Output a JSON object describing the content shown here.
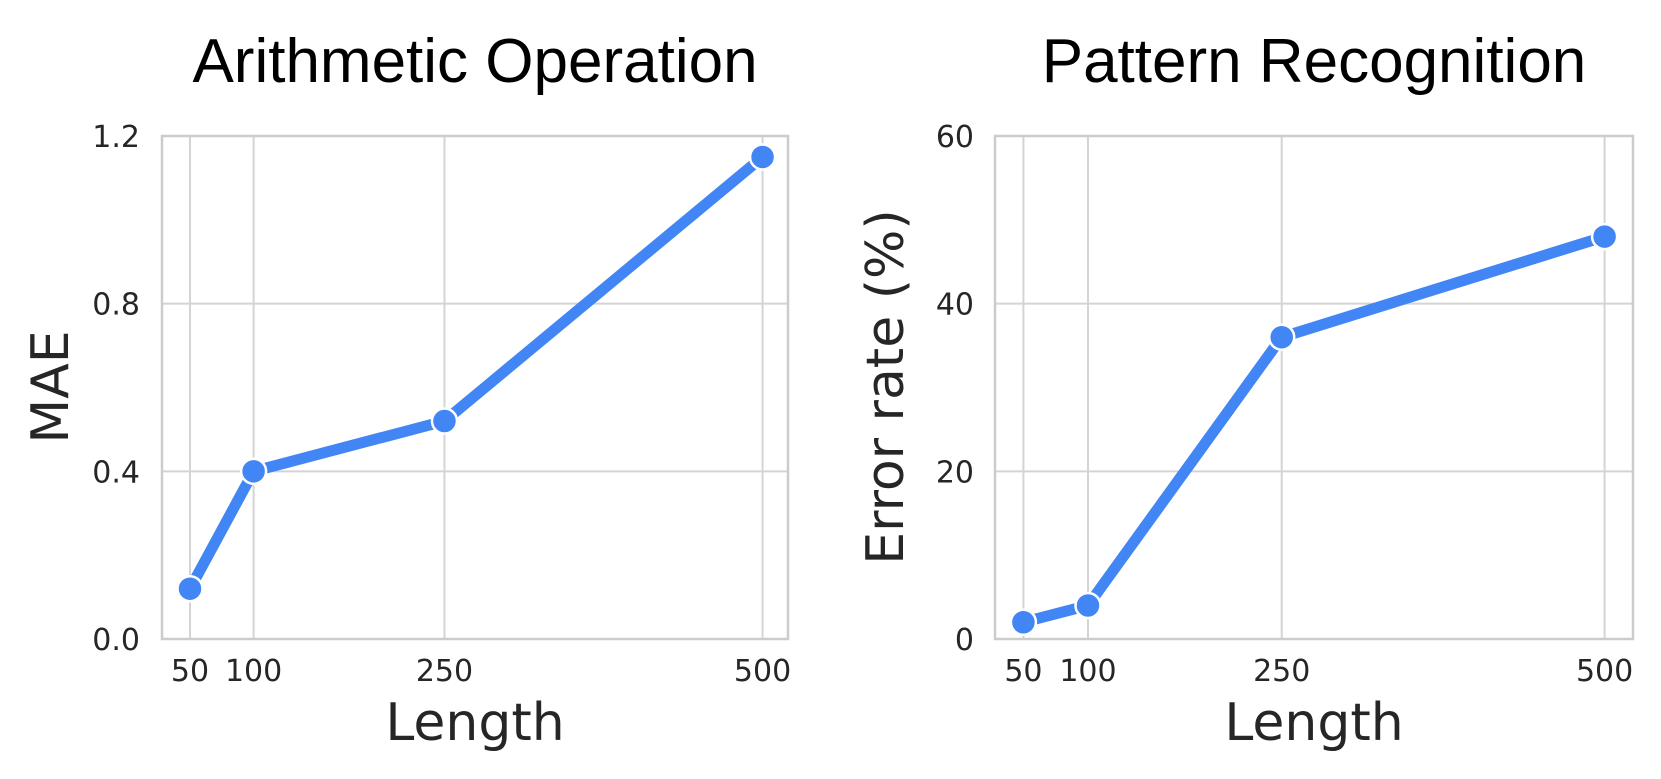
{
  "chart_data": [
    {
      "type": "line",
      "title": "Arithmetic Operation",
      "xlabel": "Length",
      "ylabel": "MAE",
      "x": [
        50,
        100,
        250,
        500
      ],
      "x_tick_labels": [
        "50",
        "100",
        "250",
        "500"
      ],
      "xlim": [
        28,
        520
      ],
      "ylim": [
        0.0,
        1.2
      ],
      "y_ticks": [
        0.0,
        0.4,
        0.8,
        1.2
      ],
      "y_tick_labels": [
        "0.0",
        "0.4",
        "0.8",
        "1.2"
      ],
      "grid": true,
      "series": [
        {
          "values": [
            0.12,
            0.4,
            0.52,
            1.15
          ],
          "color": "#4285f4"
        }
      ]
    },
    {
      "type": "line",
      "title": "Pattern Recognition",
      "xlabel": "Length",
      "ylabel": "Error rate (%)",
      "x": [
        50,
        100,
        250,
        500
      ],
      "x_tick_labels": [
        "50",
        "100",
        "250",
        "500"
      ],
      "xlim": [
        28,
        522
      ],
      "ylim": [
        0,
        60
      ],
      "y_ticks": [
        0,
        20,
        40,
        60
      ],
      "y_tick_labels": [
        "0",
        "20",
        "40",
        "60"
      ],
      "grid": true,
      "series": [
        {
          "values": [
            2,
            4,
            36,
            48
          ],
          "color": "#4285f4"
        }
      ]
    }
  ]
}
